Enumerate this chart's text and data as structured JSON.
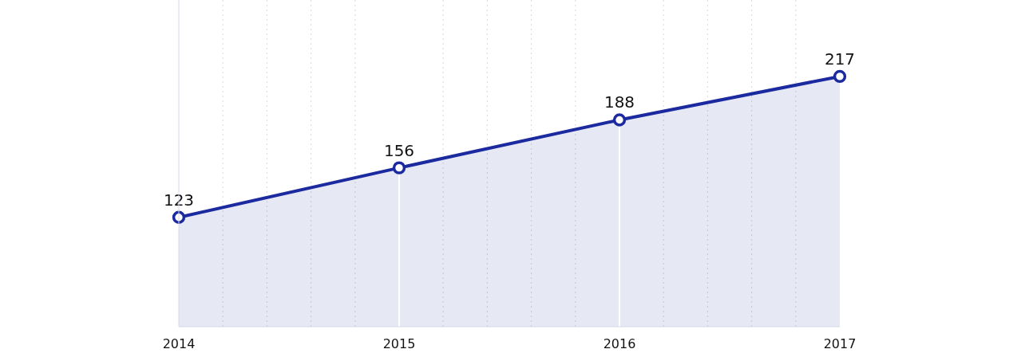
{
  "chart_data": {
    "type": "area",
    "categories": [
      "2014",
      "2015",
      "2016",
      "2017"
    ],
    "series": [
      {
        "color": "#1b2a9e",
        "values": [
          123,
          156,
          188,
          217
        ]
      }
    ],
    "ylim": [
      50,
      268
    ],
    "data_labels": true,
    "marker": "circle",
    "grid": "x",
    "tick_labels": "x"
  }
}
